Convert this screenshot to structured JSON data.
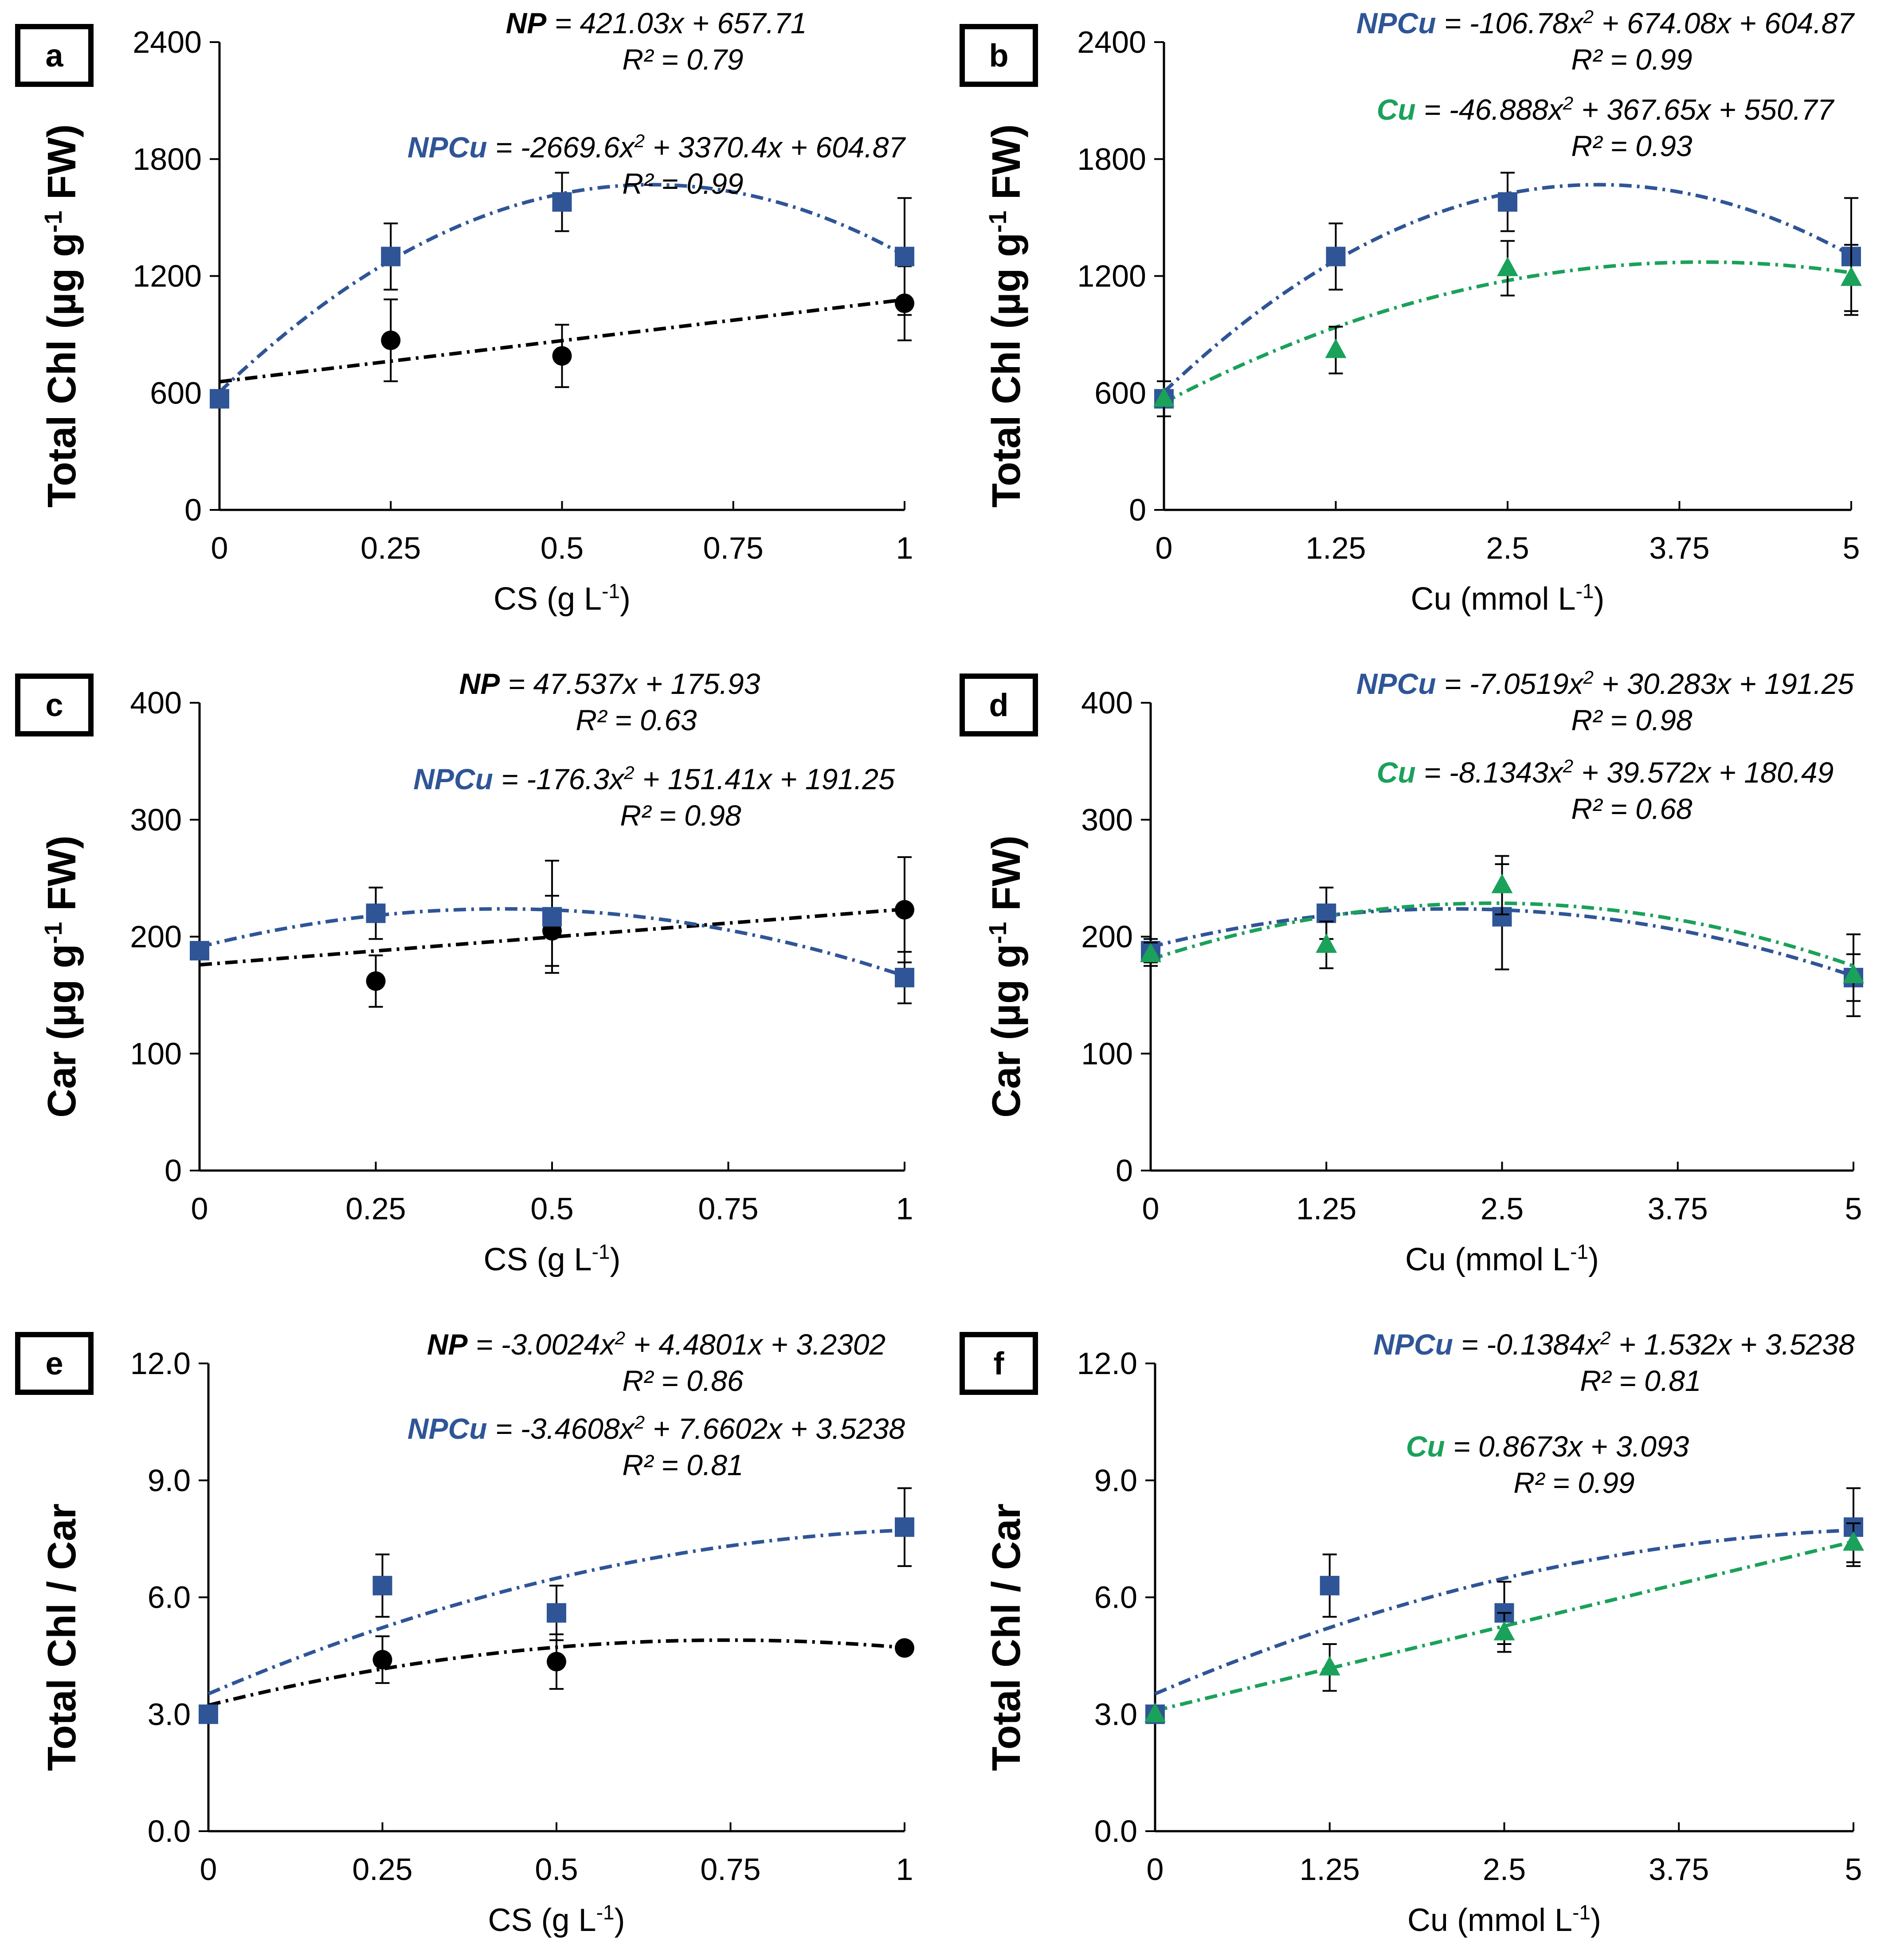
{
  "colors": {
    "NP": "#000000",
    "NPCu": "#2f5597",
    "Cu": "#1aa15a"
  },
  "chart_data": [
    {
      "type": "scatter",
      "panel_label": "a",
      "xlabel": "CS (g L",
      "xlabel_sup": "-1",
      "xlabel_close": ")",
      "ylabel": "Total Chl (µg g",
      "ylabel_sup": "-1",
      "ylabel_tail": " FW)",
      "x": [
        0,
        0.25,
        0.5,
        1
      ],
      "x_ticks": [
        "0",
        "0.25",
        "0.5",
        "0.75",
        "1"
      ],
      "x_tick_values": [
        0,
        0.25,
        0.5,
        0.75,
        1
      ],
      "xlim": [
        0,
        1
      ],
      "y_ticks": [
        "0",
        "600",
        "1200",
        "1800",
        "2400"
      ],
      "y_tick_values": [
        0,
        600,
        1200,
        1800,
        2400
      ],
      "ylim": [
        0,
        2400
      ],
      "series": [
        {
          "name": "NP",
          "marker": "circle",
          "values": [
            570,
            870,
            790,
            1060
          ],
          "errors": [
            0,
            210,
            160,
            190
          ],
          "fit": {
            "kind": "linear",
            "coef": [
              421.03,
              657.71
            ]
          }
        },
        {
          "name": "NPCu",
          "marker": "square",
          "values": [
            570,
            1300,
            1580,
            1300
          ],
          "errors": [
            0,
            170,
            150,
            300
          ],
          "fit": {
            "kind": "quadratic",
            "coef": [
              -2669.6,
              3370.4,
              604.87
            ]
          }
        }
      ],
      "equations": [
        {
          "name": "NP",
          "eq": " = 421.03x  + 657.71",
          "r2": "R² = 0.79"
        },
        {
          "name": "NPCu",
          "eq": " = -2669.6x",
          "sup": "2",
          "eq2": "  + 3370.4x  + 604.87",
          "r2": "R² = 0.99"
        }
      ]
    },
    {
      "type": "scatter",
      "panel_label": "b",
      "xlabel": "Cu (mmol L",
      "xlabel_sup": "-1",
      "xlabel_close": ")",
      "ylabel": "Total Chl (µg g",
      "ylabel_sup": "-1",
      "ylabel_tail": " FW)",
      "x": [
        0,
        1.25,
        2.5,
        5
      ],
      "x_ticks": [
        "0",
        "1.25",
        "2.5",
        "3.75",
        "5"
      ],
      "x_tick_values": [
        0,
        1.25,
        2.5,
        3.75,
        5
      ],
      "xlim": [
        0,
        5
      ],
      "y_ticks": [
        "0",
        "600",
        "1200",
        "1800",
        "2400"
      ],
      "y_tick_values": [
        0,
        600,
        1200,
        1800,
        2400
      ],
      "ylim": [
        0,
        2400
      ],
      "series": [
        {
          "name": "NPCu",
          "marker": "square",
          "values": [
            570,
            1300,
            1580,
            1300
          ],
          "errors": [
            0,
            170,
            150,
            300
          ],
          "fit": {
            "kind": "quadratic",
            "coef": [
              -106.78,
              674.08,
              604.87
            ]
          }
        },
        {
          "name": "Cu",
          "marker": "triangle",
          "values": [
            570,
            820,
            1240,
            1190
          ],
          "errors": [
            90,
            120,
            140,
            170
          ],
          "fit": {
            "kind": "quadratic",
            "coef": [
              -46.888,
              367.65,
              550.77
            ]
          }
        }
      ],
      "equations": [
        {
          "name": "NPCu",
          "eq": " = -106.78x",
          "sup": "2",
          "eq2": "  + 674.08x  + 604.87",
          "r2": "R² = 0.99"
        },
        {
          "name": "Cu",
          "eq": " = -46.888x",
          "sup": "2",
          "eq2": "  + 367.65x  + 550.77",
          "r2": "R² = 0.93"
        }
      ]
    },
    {
      "type": "scatter",
      "panel_label": "c",
      "xlabel": "CS (g L",
      "xlabel_sup": "-1",
      "xlabel_close": ")",
      "ylabel": "Car (µg g",
      "ylabel_sup": "-1",
      "ylabel_tail": " FW)",
      "x": [
        0,
        0.25,
        0.5,
        1
      ],
      "x_ticks": [
        "0",
        "0.25",
        "0.5",
        "0.75",
        "1"
      ],
      "x_tick_values": [
        0,
        0.25,
        0.5,
        0.75,
        1
      ],
      "xlim": [
        0,
        1
      ],
      "y_ticks": [
        "0",
        "100",
        "200",
        "300",
        "400"
      ],
      "y_tick_values": [
        0,
        100,
        200,
        300,
        400
      ],
      "ylim": [
        0,
        400
      ],
      "series": [
        {
          "name": "NP",
          "marker": "circle",
          "values": [
            188,
            162,
            205,
            223
          ],
          "errors": [
            0,
            22,
            30,
            45
          ],
          "fit": {
            "kind": "linear",
            "coef": [
              47.537,
              175.93
            ]
          }
        },
        {
          "name": "NPCu",
          "marker": "square",
          "values": [
            188,
            220,
            217,
            165
          ],
          "errors": [
            0,
            22,
            48,
            22
          ],
          "fit": {
            "kind": "quadratic",
            "coef": [
              -176.3,
              151.41,
              191.25
            ]
          }
        }
      ],
      "equations": [
        {
          "name": "NP",
          "eq": " = 47.537x  + 175.93",
          "r2": "R² = 0.63"
        },
        {
          "name": "NPCu",
          "eq": " = -176.3x",
          "sup": "2",
          "eq2": "  + 151.41x  + 191.25",
          "r2": "R² = 0.98"
        }
      ]
    },
    {
      "type": "scatter",
      "panel_label": "d",
      "xlabel": "Cu (mmol L",
      "xlabel_sup": "-1",
      "xlabel_close": ")",
      "ylabel": "Car (µg g",
      "ylabel_sup": "-1",
      "ylabel_tail": " FW)",
      "x": [
        0,
        1.25,
        2.5,
        5
      ],
      "x_ticks": [
        "0",
        "1.25",
        "2.5",
        "3.75",
        "5"
      ],
      "x_tick_values": [
        0,
        1.25,
        2.5,
        3.75,
        5
      ],
      "xlim": [
        0,
        5
      ],
      "y_ticks": [
        "0",
        "100",
        "200",
        "300",
        "400"
      ],
      "y_tick_values": [
        0,
        100,
        200,
        300,
        400
      ],
      "ylim": [
        0,
        400
      ],
      "series": [
        {
          "name": "NPCu",
          "marker": "square",
          "values": [
            188,
            220,
            217,
            165
          ],
          "errors": [
            10,
            22,
            45,
            20
          ],
          "fit": {
            "kind": "quadratic",
            "coef": [
              -7.0519,
              30.283,
              191.25
            ]
          }
        },
        {
          "name": "Cu",
          "marker": "triangle",
          "values": [
            185,
            193,
            244,
            167
          ],
          "errors": [
            10,
            20,
            25,
            35
          ],
          "fit": {
            "kind": "quadratic",
            "coef": [
              -8.1343,
              39.572,
              180.49
            ]
          }
        }
      ],
      "equations": [
        {
          "name": "NPCu",
          "eq": " = -7.0519x",
          "sup": "2",
          "eq2": "  + 30.283x  + 191.25",
          "r2": "R² = 0.98"
        },
        {
          "name": "Cu",
          "eq": " = -8.1343x",
          "sup": "2",
          "eq2": "  + 39.572x  + 180.49",
          "r2": "R² = 0.68"
        }
      ]
    },
    {
      "type": "scatter",
      "panel_label": "e",
      "xlabel": "CS (g L",
      "xlabel_sup": "-1",
      "xlabel_close": ")",
      "ylabel": "Total Chl / Car",
      "ylabel_sup": "",
      "ylabel_tail": "",
      "x": [
        0,
        0.25,
        0.5,
        1
      ],
      "x_ticks": [
        "0",
        "0.25",
        "0.5",
        "0.75",
        "1"
      ],
      "x_tick_values": [
        0,
        0.25,
        0.5,
        0.75,
        1
      ],
      "xlim": [
        0,
        1
      ],
      "y_ticks": [
        "0.0",
        "3.0",
        "6.0",
        "9.0",
        "12.0"
      ],
      "y_tick_values": [
        0,
        3,
        6,
        9,
        12
      ],
      "ylim": [
        0,
        12
      ],
      "series": [
        {
          "name": "NP",
          "marker": "circle",
          "values": [
            3.0,
            4.4,
            4.35,
            4.7
          ],
          "errors": [
            0,
            0.6,
            0.7,
            0
          ],
          "fit": {
            "kind": "quadratic",
            "coef": [
              -3.0024,
              4.4801,
              3.2302
            ]
          }
        },
        {
          "name": "NPCu",
          "marker": "square",
          "values": [
            3.0,
            6.3,
            5.6,
            7.8
          ],
          "errors": [
            0,
            0.8,
            0.7,
            1.0
          ],
          "fit": {
            "kind": "quadratic",
            "coef": [
              -3.4608,
              7.6602,
              3.5238
            ]
          }
        }
      ],
      "equations": [
        {
          "name": "NP",
          "eq": " = -3.0024x",
          "sup": "2",
          "eq2": "  + 4.4801x  + 3.2302",
          "r2": "R² = 0.86"
        },
        {
          "name": "NPCu",
          "eq": " = -3.4608x",
          "sup": "2",
          "eq2": "  + 7.6602x  + 3.5238",
          "r2": "R² = 0.81"
        }
      ]
    },
    {
      "type": "scatter",
      "panel_label": "f",
      "xlabel": "Cu (mmol L",
      "xlabel_sup": "-1",
      "xlabel_close": ")",
      "ylabel": "Total Chl / Car",
      "ylabel_sup": "",
      "ylabel_tail": "",
      "x": [
        0,
        1.25,
        2.5,
        5
      ],
      "x_ticks": [
        "0",
        "1.25",
        "2.5",
        "3.75",
        "5"
      ],
      "x_tick_values": [
        0,
        1.25,
        2.5,
        3.75,
        5
      ],
      "xlim": [
        0,
        5
      ],
      "y_ticks": [
        "0.0",
        "3.0",
        "6.0",
        "9.0",
        "12.0"
      ],
      "y_tick_values": [
        0,
        3,
        6,
        9,
        12
      ],
      "ylim": [
        0,
        12
      ],
      "series": [
        {
          "name": "NPCu",
          "marker": "square",
          "values": [
            3.0,
            6.3,
            5.6,
            7.8
          ],
          "errors": [
            0,
            0.8,
            0.8,
            1.0
          ],
          "fit": {
            "kind": "quadratic",
            "coef": [
              -0.1384,
              1.532,
              3.5238
            ]
          }
        },
        {
          "name": "Cu",
          "marker": "triangle",
          "values": [
            3.0,
            4.2,
            5.1,
            7.4
          ],
          "errors": [
            0,
            0.6,
            0.5,
            0.5
          ],
          "fit": {
            "kind": "linear",
            "coef": [
              0.8673,
              3.093
            ]
          }
        }
      ],
      "equations": [
        {
          "name": "NPCu",
          "eq": " = -0.1384x",
          "sup": "2",
          "eq2": "  + 1.532x  + 3.5238",
          "r2": "R² = 0.81"
        },
        {
          "name": "Cu",
          "eq": " = 0.8673x  + 3.093",
          "r2": "R² = 0.99"
        }
      ]
    }
  ]
}
